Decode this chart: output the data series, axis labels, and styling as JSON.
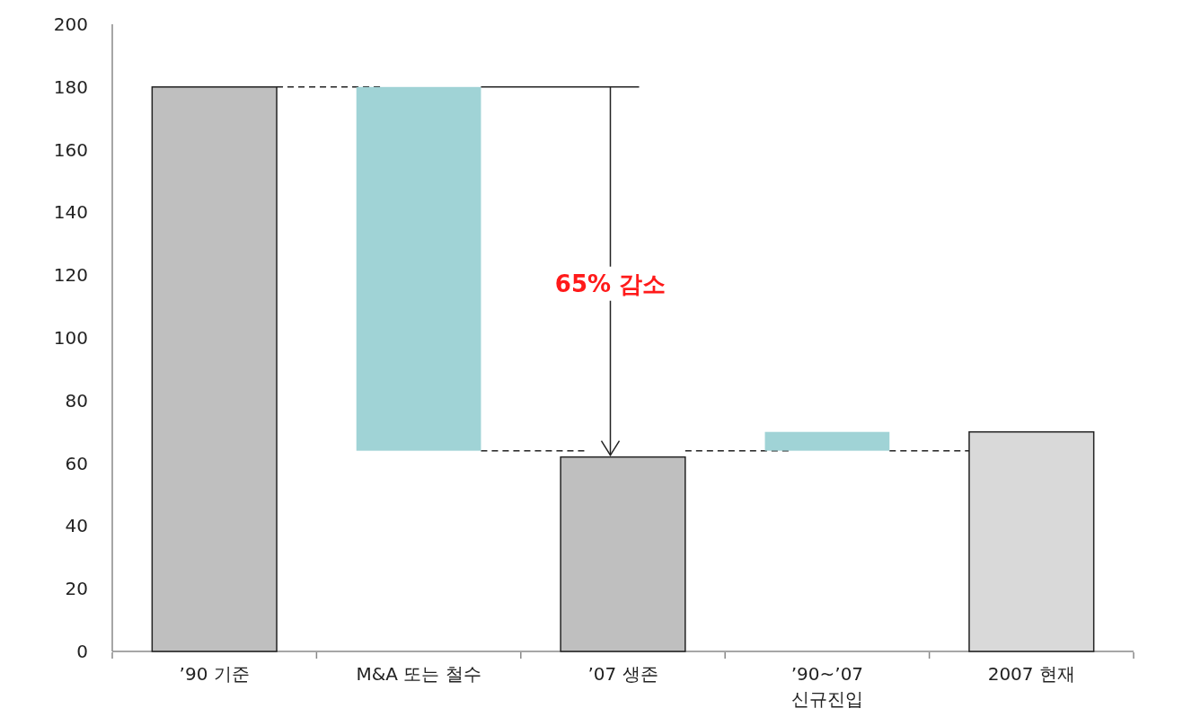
{
  "chart_data": {
    "type": "bar",
    "categories": [
      "’90 기준",
      "M&A 또는 철수",
      "’07 생존",
      "’90~’07\n신규진입",
      "2007 현재"
    ],
    "values": [
      180,
      116,
      62,
      6,
      70
    ],
    "base": [
      0,
      64,
      0,
      64,
      0
    ],
    "colors": [
      "#bfbfbf",
      "#a0d3d6",
      "#bfbfbf",
      "#a0d3d6",
      "#d9d9d9"
    ],
    "ylim": [
      0,
      200
    ],
    "yticks": [
      0,
      20,
      40,
      60,
      80,
      100,
      120,
      140,
      160,
      180,
      200
    ],
    "annotations": [
      "65% 감소"
    ]
  }
}
